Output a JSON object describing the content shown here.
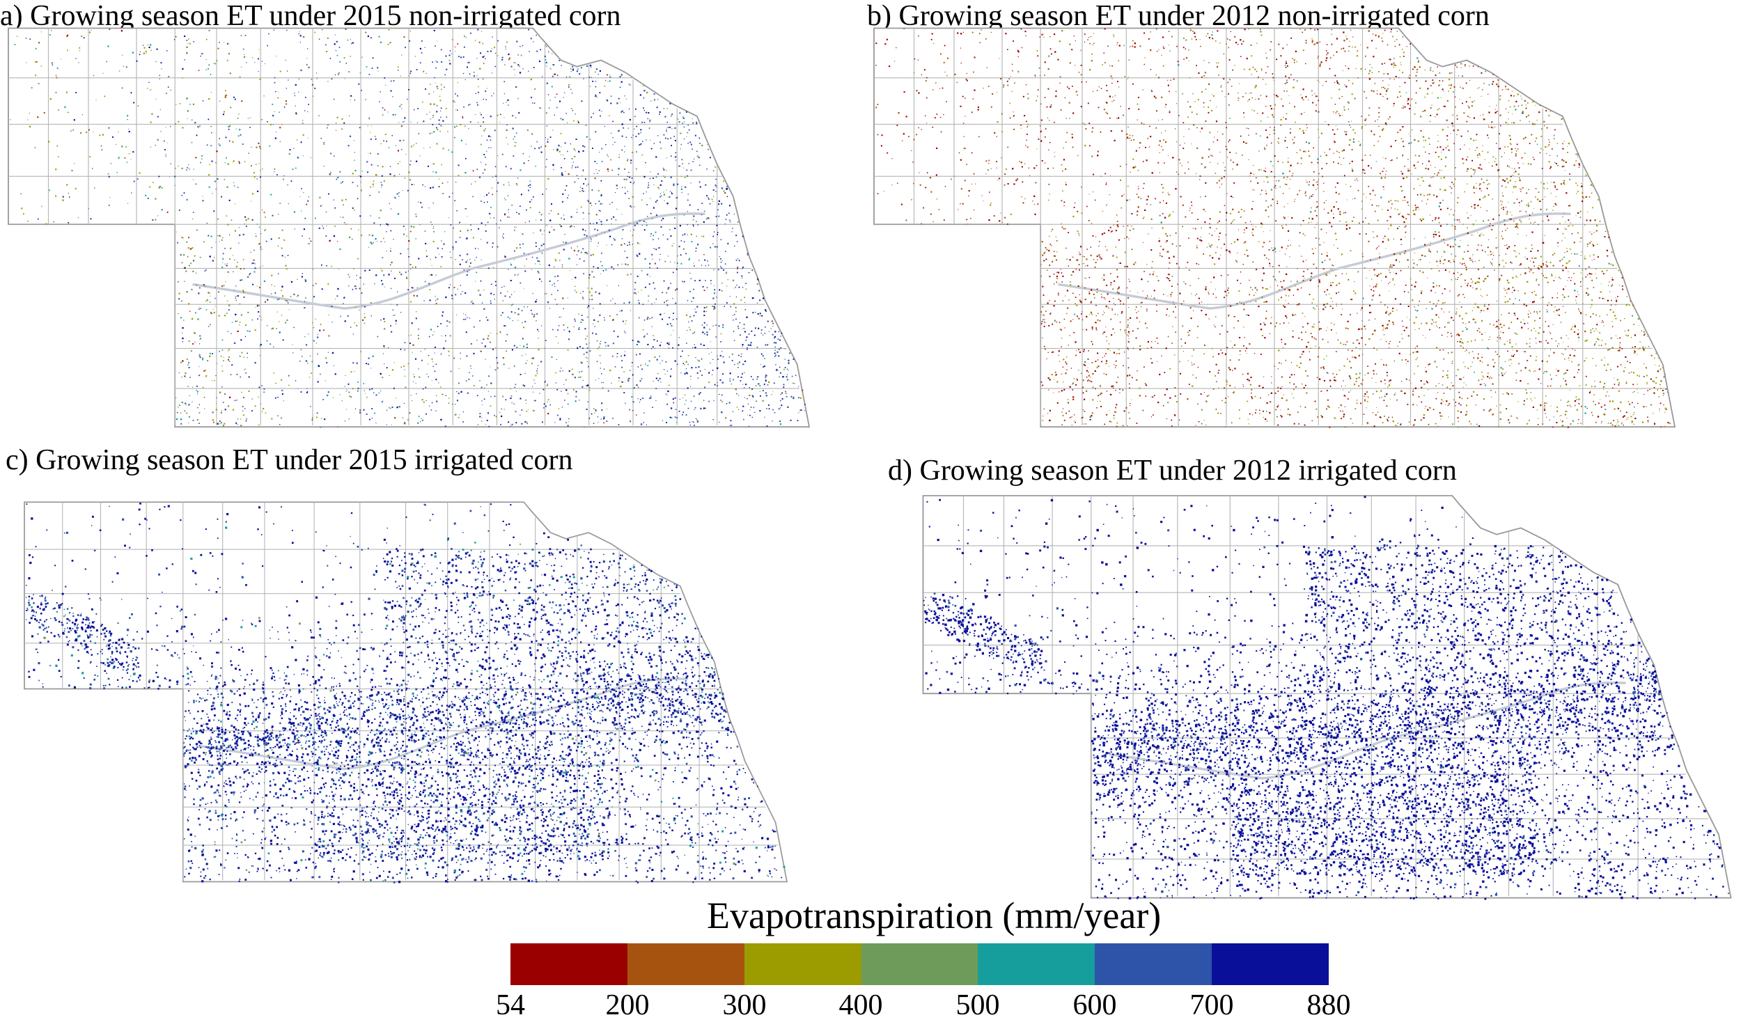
{
  "panels": [
    {
      "id": "a",
      "title": "a) Growing season ET under 2015 non-irrigated corn",
      "year": 2015,
      "irrigation": "non-irrigated",
      "weights": [
        0.02,
        0.08,
        0.16,
        0.12,
        0.1,
        0.32,
        0.2
      ],
      "east_bias": "blue",
      "density": 0.55
    },
    {
      "id": "b",
      "title": "b) Growing season ET under 2012 non-irrigated corn",
      "year": 2012,
      "irrigation": "non-irrigated",
      "weights": [
        0.45,
        0.3,
        0.18,
        0.05,
        0.02,
        0.0,
        0.0
      ],
      "east_bias": "yellow",
      "density": 0.7
    },
    {
      "id": "c",
      "title": "c) Growing season ET under 2015 irrigated corn",
      "year": 2015,
      "irrigation": "irrigated",
      "weights": [
        0.0,
        0.0,
        0.0,
        0.01,
        0.04,
        0.3,
        0.65
      ],
      "east_bias": "none",
      "density": 1.0
    },
    {
      "id": "d",
      "title": "d) Growing season ET under 2012 irrigated corn",
      "year": 2012,
      "irrigation": "irrigated",
      "weights": [
        0.0,
        0.0,
        0.0,
        0.0,
        0.0,
        0.1,
        0.9
      ],
      "east_bias": "none",
      "density": 1.1
    }
  ],
  "legend": {
    "title": "Evapotranspiration (mm/year)",
    "ticks": [
      "54",
      "200",
      "300",
      "400",
      "500",
      "600",
      "700",
      "880"
    ],
    "colors": [
      "#9b0000",
      "#a75310",
      "#9c9b00",
      "#6f9b5a",
      "#159e9b",
      "#2d54a8",
      "#0a0f9a"
    ]
  }
}
